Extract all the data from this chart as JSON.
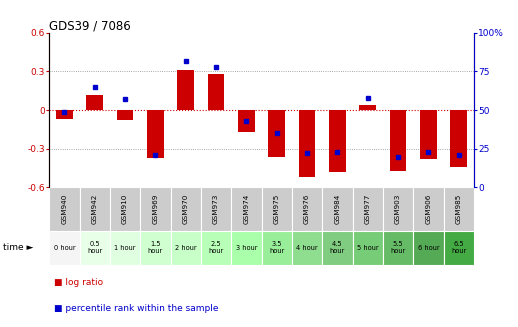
{
  "title": "GDS39 / 7086",
  "samples": [
    "GSM940",
    "GSM942",
    "GSM910",
    "GSM969",
    "GSM970",
    "GSM973",
    "GSM974",
    "GSM975",
    "GSM976",
    "GSM984",
    "GSM977",
    "GSM903",
    "GSM906",
    "GSM985"
  ],
  "time_labels": [
    "0 hour",
    "0.5\nhour",
    "1 hour",
    "1.5\nhour",
    "2 hour",
    "2.5\nhour",
    "3 hour",
    "3.5\nhour",
    "4 hour",
    "4.5\nhour",
    "5 hour",
    "5.5\nhour",
    "6 hour",
    "6.5\nhour"
  ],
  "log_ratio": [
    -0.07,
    0.12,
    -0.08,
    -0.37,
    0.31,
    0.28,
    -0.17,
    -0.36,
    -0.52,
    -0.48,
    0.04,
    -0.47,
    -0.38,
    -0.44
  ],
  "percentile": [
    49,
    65,
    57,
    21,
    82,
    78,
    43,
    35,
    22,
    23,
    58,
    20,
    23,
    21
  ],
  "ylim_left": [
    -0.6,
    0.6
  ],
  "ylim_right": [
    0,
    100
  ],
  "yticks_left": [
    -0.6,
    -0.3,
    0,
    0.3,
    0.6
  ],
  "yticks_right": [
    0,
    25,
    50,
    75,
    100
  ],
  "bar_color": "#cc0000",
  "dot_color": "#0000cc",
  "zero_line_color": "#cc0000",
  "grid_color": "#333333",
  "gsm_bg": "#cccccc",
  "time_bg_colors": [
    "#f5f5f5",
    "#e8ffe8",
    "#e0ffe0",
    "#d0ffd0",
    "#c8ffc8",
    "#b8ffb8",
    "#aaffaa",
    "#99ee99",
    "#8fdd8f",
    "#80cc80",
    "#77cc77",
    "#66bb66",
    "#55aa55",
    "#44aa44"
  ],
  "legend_labels": [
    "log ratio",
    "percentile rank within the sample"
  ],
  "legend_colors": [
    "#cc0000",
    "#0000cc"
  ]
}
